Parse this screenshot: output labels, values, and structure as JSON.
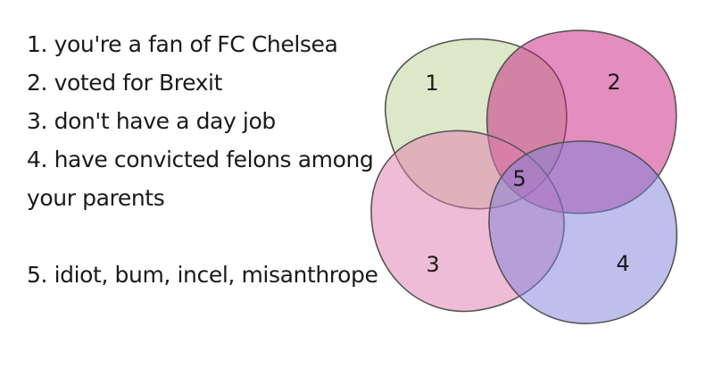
{
  "legend": {
    "item1": "1. you're a fan of FC Chelsea",
    "item2": "2. voted for Brexit",
    "item3": "3. don't have a day job",
    "item4_line1": "4. have convicted felons among",
    "item4_line2": "your parents",
    "item5": "5. idiot, bum, incel, misanthrope"
  },
  "venn": {
    "sets": [
      {
        "label": "1",
        "color": "#b9d18f"
      },
      {
        "label": "2",
        "color": "#c71e80"
      },
      {
        "label": "3",
        "color": "#e07aaf"
      },
      {
        "label": "4",
        "color": "#7d7fdc"
      }
    ],
    "intersection_label": "5",
    "outline_color": "#555555"
  }
}
